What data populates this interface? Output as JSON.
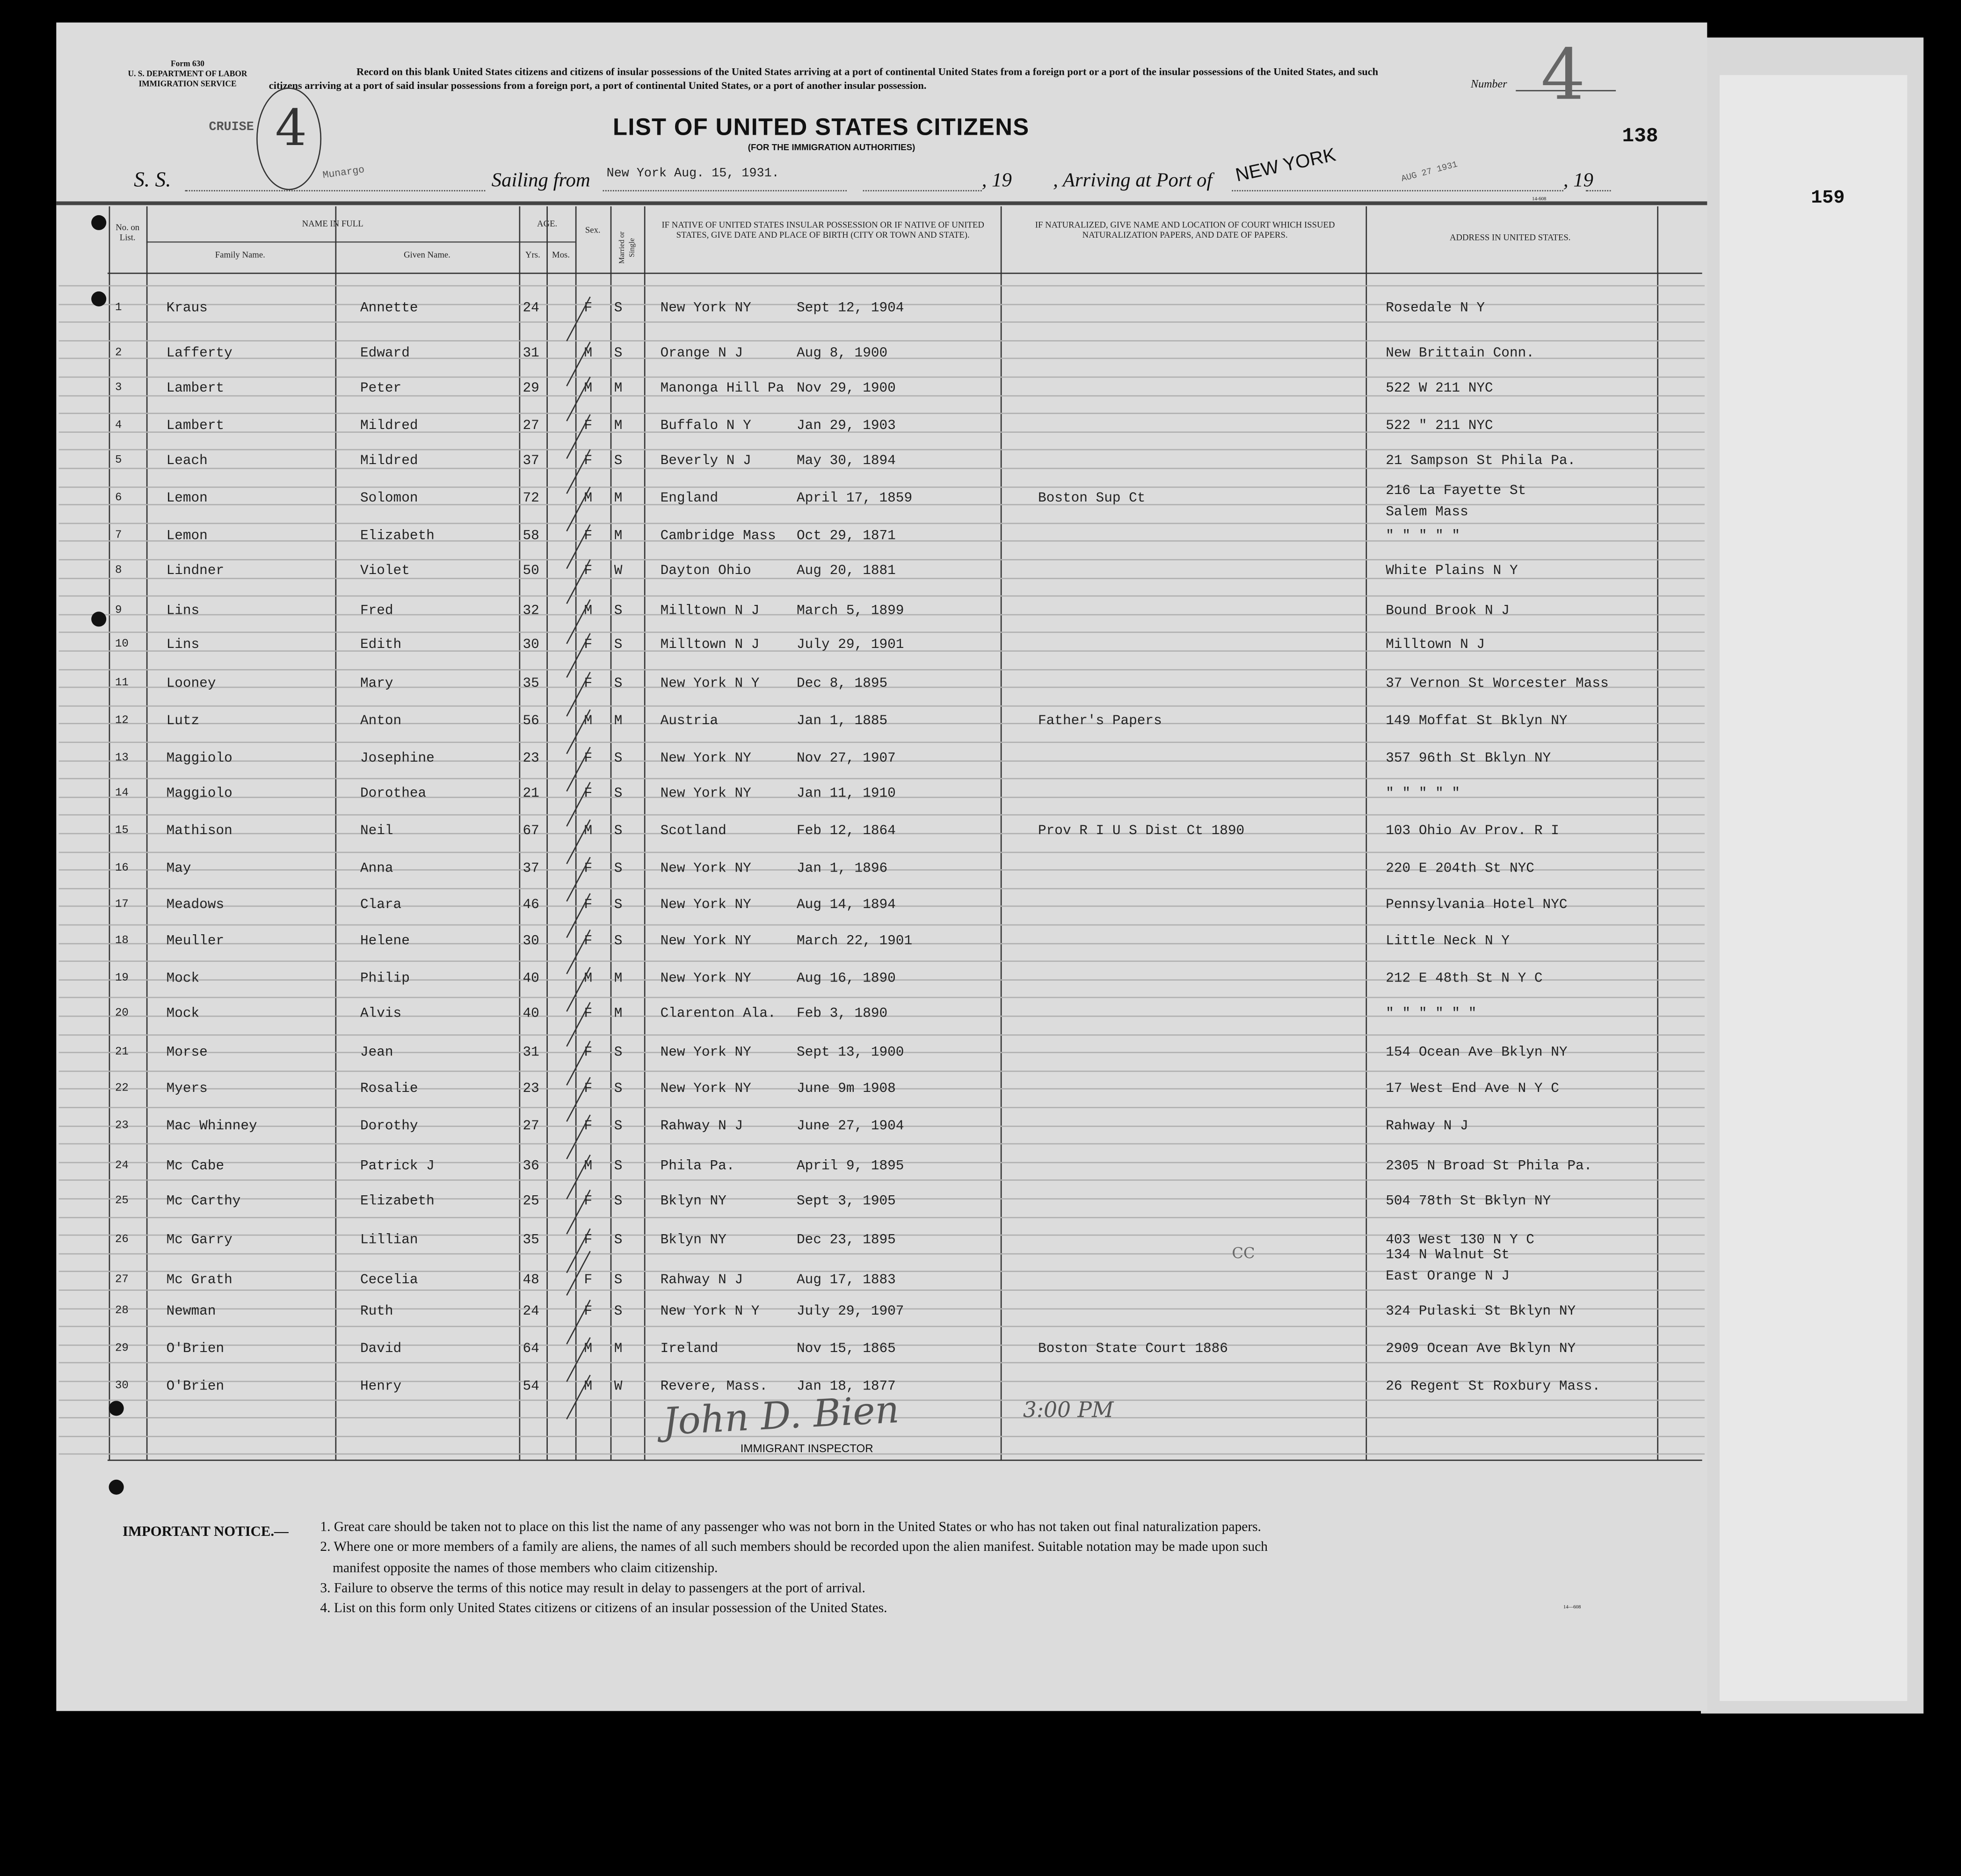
{
  "form": {
    "form_number": "Form 630",
    "department": "U. S. DEPARTMENT OF LABOR",
    "service": "IMMIGRATION SERVICE",
    "instructions": "Record on this blank United States citizens and citizens of insular possessions of the United States arriving at a port of continental United States from a foreign port or a port of the insular possessions of the United States, and such citizens arriving at a port of said insular possessions from a foreign port, a port of continental United States, or a port of another insular possession.",
    "number_label": "Number",
    "number_value": "4",
    "page_number": "138",
    "side_page_number": "159",
    "cruise_stamp": "CRUISE",
    "circled_number": "4",
    "title": "LIST OF UNITED STATES CITIZENS",
    "subtitle": "(FOR THE IMMIGRATION AUTHORITIES)",
    "ss_label": "S. S.",
    "ship_name": "Munargo",
    "sailing_label": "Sailing from",
    "sailing_value": "New York  Aug. 15, 1931.",
    "year_label_1": ", 19",
    "arriving_label": ", Arriving at Port of",
    "arriving_port": "NEW YORK",
    "arrival_date_stamp": "AUG 27 1931",
    "year_label_2": ", 19",
    "print_code": "14-608"
  },
  "table": {
    "headers": {
      "no": "No. on List.",
      "name_in_full": "NAME IN FULL",
      "family_name": "Family Name.",
      "given_name": "Given Name.",
      "age": "AGE.",
      "yrs": "Yrs.",
      "mos": "Mos.",
      "sex": "Sex.",
      "married": "Married or Single",
      "birth": "IF NATIVE OF UNITED STATES INSULAR POSSESSION OR IF NATIVE OF UNITED STATES, GIVE DATE AND PLACE OF BIRTH (CITY OR TOWN AND STATE).",
      "naturalized": "IF NATURALIZED, GIVE NAME AND LOCATION OF COURT WHICH ISSUED NATURALIZATION PAPERS, AND DATE OF PAPERS.",
      "address": "ADDRESS IN UNITED STATES."
    },
    "rows": [
      {
        "no": "1",
        "family": "Kraus",
        "given": "Annette",
        "age": "24",
        "sex": "F",
        "status": "S",
        "birthplace": "New York NY",
        "birthdate": "Sept 12, 1904",
        "naturalized": "",
        "address": "Rosedale N Y"
      },
      {
        "no": "2",
        "family": "Lafferty",
        "given": "Edward",
        "age": "31",
        "sex": "M",
        "status": "S",
        "birthplace": "Orange N J",
        "birthdate": "Aug 8, 1900",
        "naturalized": "",
        "address": "New Brittain Conn."
      },
      {
        "no": "3",
        "family": "Lambert",
        "given": "Peter",
        "age": "29",
        "sex": "M",
        "status": "M",
        "birthplace": "Manonga Hill Pa",
        "birthdate": "Nov 29, 1900",
        "naturalized": "",
        "address": "522 W 211  NYC"
      },
      {
        "no": "4",
        "family": "Lambert",
        "given": "Mildred",
        "age": "27",
        "sex": "F",
        "status": "M",
        "birthplace": "Buffalo N Y",
        "birthdate": "Jan 29, 1903",
        "naturalized": "",
        "address": "522 \" 211  NYC"
      },
      {
        "no": "5",
        "family": "Leach",
        "given": "Mildred",
        "age": "37",
        "sex": "F",
        "status": "S",
        "birthplace": "Beverly N J",
        "birthdate": "May 30, 1894",
        "naturalized": "",
        "address": "21 Sampson St  Phila Pa."
      },
      {
        "no": "6",
        "family": "Lemon",
        "given": "Solomon",
        "age": "72",
        "sex": "M",
        "status": "M",
        "birthplace": "England",
        "birthdate": "April 17, 1859",
        "naturalized": "Boston Sup Ct",
        "address": "216 La Fayette St",
        "address2": "Salem Mass"
      },
      {
        "no": "7",
        "family": "Lemon",
        "given": "Elizabeth",
        "age": "58",
        "sex": "F",
        "status": "M",
        "birthplace": "Cambridge Mass",
        "birthdate": "Oct 29, 1871",
        "naturalized": "",
        "address": "\"   \"   \"   \"   \""
      },
      {
        "no": "8",
        "family": "Lindner",
        "given": "Violet",
        "age": "50",
        "sex": "F",
        "status": "W",
        "birthplace": "Dayton Ohio",
        "birthdate": "Aug 20, 1881",
        "naturalized": "",
        "address": "White Plains N Y"
      },
      {
        "no": "9",
        "family": "Lins",
        "given": "Fred",
        "age": "32",
        "sex": "M",
        "status": "S",
        "birthplace": "Milltown N J",
        "birthdate": "March 5, 1899",
        "naturalized": "",
        "address": "Bound Brook  N J"
      },
      {
        "no": "10",
        "family": "Lins",
        "given": "Edith",
        "age": "30",
        "sex": "F",
        "status": "S",
        "birthplace": "Milltown N J",
        "birthdate": "July 29, 1901",
        "naturalized": "",
        "address": "Milltown  N J"
      },
      {
        "no": "11",
        "family": "Looney",
        "given": "Mary",
        "age": "35",
        "sex": "F",
        "status": "S",
        "birthplace": "New York N Y",
        "birthdate": "Dec 8, 1895",
        "naturalized": "",
        "address": "37 Vernon St  Worcester Mass"
      },
      {
        "no": "12",
        "family": "Lutz",
        "given": "Anton",
        "age": "56",
        "sex": "M",
        "status": "M",
        "birthplace": "Austria",
        "birthdate": "Jan 1, 1885",
        "naturalized": "Father's Papers",
        "address": "149 Moffat St  Bklyn NY"
      },
      {
        "no": "13",
        "family": "Maggiolo",
        "given": "Josephine",
        "age": "23",
        "sex": "F",
        "status": "S",
        "birthplace": "New York NY",
        "birthdate": "Nov 27, 1907",
        "naturalized": "",
        "address": "357  96th St  Bklyn NY"
      },
      {
        "no": "14",
        "family": "Maggiolo",
        "given": "Dorothea",
        "age": "21",
        "sex": "F",
        "status": "S",
        "birthplace": "New York NY",
        "birthdate": "Jan 11, 1910",
        "naturalized": "",
        "address": "\"    \"    \"    \"    \""
      },
      {
        "no": "15",
        "family": "Mathison",
        "given": "Neil",
        "age": "67",
        "sex": "M",
        "status": "S",
        "birthplace": "Scotland",
        "birthdate": "Feb 12, 1864",
        "naturalized": "Prov R I  U S Dist Ct  1890",
        "address": "103 Ohio Av  Prov. R I"
      },
      {
        "no": "16",
        "family": "May",
        "given": "Anna",
        "age": "37",
        "sex": "F",
        "status": "S",
        "birthplace": "New York NY",
        "birthdate": "Jan 1, 1896",
        "naturalized": "",
        "address": "220 E 204th St   NYC"
      },
      {
        "no": "17",
        "family": "Meadows",
        "given": "Clara",
        "age": "46",
        "sex": "F",
        "status": "S",
        "birthplace": "New York NY",
        "birthdate": "Aug 14, 1894",
        "naturalized": "",
        "address": "Pennsylvania Hotel  NYC"
      },
      {
        "no": "18",
        "family": "Meuller",
        "given": "Helene",
        "age": "30",
        "sex": "F",
        "status": "S",
        "birthplace": "New York NY",
        "birthdate": "March 22, 1901",
        "naturalized": "",
        "address": "Little Neck  N Y"
      },
      {
        "no": "19",
        "family": "Mock",
        "given": "Philip",
        "age": "40",
        "sex": "M",
        "status": "M",
        "birthplace": "New York NY",
        "birthdate": "Aug 16, 1890",
        "naturalized": "",
        "address": "212 E 48th St  N Y C"
      },
      {
        "no": "20",
        "family": "Mock",
        "given": "Alvis",
        "age": "40",
        "sex": "F",
        "status": "M",
        "birthplace": "Clarenton Ala.",
        "birthdate": "Feb 3, 1890",
        "naturalized": "",
        "address": "\"  \"   \"  \"   \"  \""
      },
      {
        "no": "21",
        "family": "Morse",
        "given": "Jean",
        "age": "31",
        "sex": "F",
        "status": "S",
        "birthplace": "New York NY",
        "birthdate": "Sept 13, 1900",
        "naturalized": "",
        "address": "154 Ocean Ave  Bklyn NY"
      },
      {
        "no": "22",
        "family": "Myers",
        "given": "Rosalie",
        "age": "23",
        "sex": "F",
        "status": "S",
        "birthplace": "New York NY",
        "birthdate": "June 9m 1908",
        "naturalized": "",
        "address": "17 West End Ave  N Y C"
      },
      {
        "no": "23",
        "family": "Mac Whinney",
        "given": "Dorothy",
        "age": "27",
        "sex": "F",
        "status": "S",
        "birthplace": "Rahway N J",
        "birthdate": "June 27, 1904",
        "naturalized": "",
        "address": "Rahway  N J"
      },
      {
        "no": "24",
        "family": "Mc Cabe",
        "given": "Patrick J",
        "age": "36",
        "sex": "M",
        "status": "S",
        "birthplace": "Phila Pa.",
        "birthdate": "April 9, 1895",
        "naturalized": "",
        "address": "2305 N Broad St  Phila Pa."
      },
      {
        "no": "25",
        "family": "Mc Carthy",
        "given": "Elizabeth",
        "age": "25",
        "sex": "F",
        "status": "S",
        "birthplace": "Bklyn NY",
        "birthdate": "Sept 3, 1905",
        "naturalized": "",
        "address": "504  78th St  Bklyn NY"
      },
      {
        "no": "26",
        "family": "Mc Garry",
        "given": "Lillian",
        "age": "35",
        "sex": "F",
        "status": "S",
        "birthplace": "Bklyn NY",
        "birthdate": "Dec 23, 1895",
        "naturalized": "",
        "address": "403 West 130  N Y C"
      },
      {
        "no": "27",
        "family": "Mc Grath",
        "given": "Cecelia",
        "age": "48",
        "sex": "F",
        "status": "S",
        "birthplace": "Rahway N J",
        "birthdate": "Aug 17, 1883",
        "naturalized": "",
        "address": "134 N Walnut St",
        "address2": "East Orange  N J"
      },
      {
        "no": "28",
        "family": "Newman",
        "given": "Ruth",
        "age": "24",
        "sex": "F",
        "status": "S",
        "birthplace": "New York N Y",
        "birthdate": "July 29, 1907",
        "naturalized": "",
        "address": "324 Pulaski St  Bklyn NY"
      },
      {
        "no": "29",
        "family": "O'Brien",
        "given": "David",
        "age": "64",
        "sex": "M",
        "status": "M",
        "birthplace": "Ireland",
        "birthdate": "Nov 15, 1865",
        "naturalized": "Boston  State Court  1886",
        "address": "2909 Ocean Ave  Bklyn NY"
      },
      {
        "no": "30",
        "family": "O'Brien",
        "given": "Henry",
        "age": "54",
        "sex": "M",
        "status": "W",
        "birthplace": "Revere, Mass.",
        "birthdate": "Jan 18, 1877",
        "naturalized": "",
        "address": "26 Regent St  Roxbury  Mass."
      }
    ],
    "margin_note": "CC"
  },
  "signature": {
    "name": "John D. Bien",
    "time": "3:00 PM",
    "title": "IMMIGRANT INSPECTOR"
  },
  "notice": {
    "heading": "IMPORTANT NOTICE.—",
    "items": [
      "1. Great care should be taken not to place on this list the name of any passenger who was not born in the United States or who has not taken out final naturalization papers.",
      "2. Where one or more members of a family are aliens, the names of all such members should be recorded upon the alien manifest.   Suitable notation may be made upon such",
      "manifest opposite the names of those members who claim citizenship.",
      "3. Failure to observe the terms of this notice may result in delay to passengers at the port of arrival.",
      "4. List on this form only United States citizens or citizens of an insular possession of the United States."
    ],
    "code": "14—608"
  }
}
